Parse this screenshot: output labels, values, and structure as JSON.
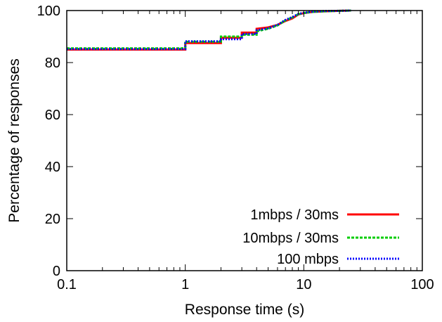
{
  "chart_data": {
    "type": "line",
    "title": "",
    "xlabel": "Response time (s)",
    "ylabel": "Percentage of responses",
    "xscale": "log",
    "xlim": [
      0.1,
      100
    ],
    "ylim": [
      0,
      100
    ],
    "xticks": [
      0.1,
      1,
      10,
      100
    ],
    "xtick_labels": [
      "0.1",
      "1",
      "10",
      "100"
    ],
    "yticks": [
      0,
      20,
      40,
      60,
      80,
      100
    ],
    "ytick_labels": [
      "0",
      "20",
      "40",
      "60",
      "80",
      "100"
    ],
    "grid": false,
    "legend_position": "bottom-right",
    "series": [
      {
        "name": "1mbps / 30ms",
        "color": "#ff0000",
        "dash": "solid",
        "x": [
          0.1,
          1,
          1,
          2,
          2,
          3,
          3,
          4,
          4,
          5,
          6,
          7,
          8,
          9,
          10,
          11,
          12,
          15,
          20,
          25
        ],
        "y": [
          85,
          85,
          87.5,
          87.5,
          89.5,
          89.5,
          91.5,
          91.5,
          93,
          93.5,
          94.5,
          96,
          97,
          98.5,
          99,
          99.3,
          99.5,
          99.7,
          99.9,
          100
        ]
      },
      {
        "name": "10mbps / 30ms",
        "color": "#00cc00",
        "dash": "dashed",
        "x": [
          0.1,
          1,
          1,
          2,
          2,
          3,
          3,
          4,
          4,
          5,
          6,
          7,
          8,
          9,
          10,
          11,
          12,
          15,
          20,
          25
        ],
        "y": [
          85.5,
          85.5,
          88,
          88,
          90,
          90,
          90.7,
          90.7,
          92,
          93,
          94.3,
          96.2,
          97.3,
          98.6,
          99,
          99.3,
          99.5,
          99.7,
          99.9,
          100
        ]
      },
      {
        "name": "100 mbps",
        "color": "#0000ff",
        "dash": "dotted",
        "x": [
          0.1,
          1,
          1,
          2,
          2,
          3,
          3,
          4,
          4,
          5,
          6,
          7,
          8,
          9,
          10,
          11,
          12,
          15,
          20,
          25
        ],
        "y": [
          85.2,
          85.2,
          88.2,
          88.2,
          89,
          89,
          91,
          91,
          92.4,
          93.2,
          94.5,
          96.4,
          97.5,
          98.7,
          99.1,
          99.4,
          99.6,
          99.8,
          99.9,
          100
        ]
      }
    ]
  }
}
